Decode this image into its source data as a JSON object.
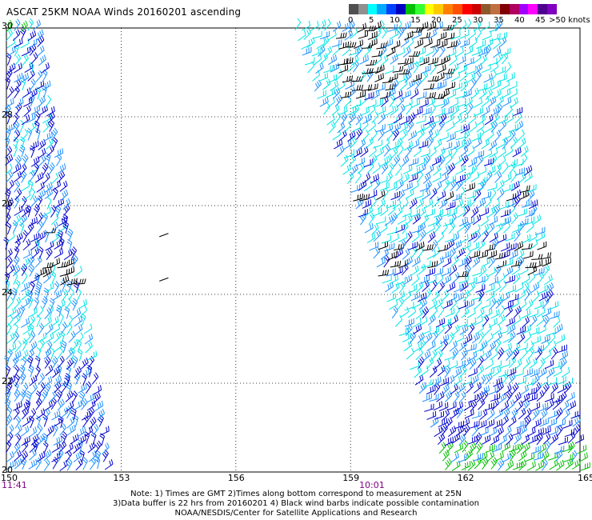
{
  "title": "ASCAT 25KM NOAA Winds 20160201 ascending",
  "legend": {
    "unit_label": ">50 knots",
    "ticks": [
      "0",
      "5",
      "10",
      "15",
      "20",
      "25",
      "30",
      "35",
      "40",
      "45"
    ],
    "colors": [
      "#505050",
      "#909090",
      "#00ffff",
      "#00aaff",
      "#0040ff",
      "#0000c0",
      "#00c000",
      "#33ff33",
      "#ffff00",
      "#ffcc00",
      "#ff8000",
      "#ff5000",
      "#ff0000",
      "#cc0000",
      "#8b5a2b",
      "#c07040",
      "#800000",
      "#b00060",
      "#a000ff",
      "#ff00ff",
      "#500090",
      "#8000c0"
    ]
  },
  "map": {
    "lon_ticks": [
      "150",
      "153",
      "156",
      "159",
      "162",
      "165"
    ],
    "lat_ticks": [
      "30",
      "28",
      "26",
      "24",
      "22",
      "20"
    ],
    "lon_range": [
      150,
      165
    ],
    "lat_range": [
      20,
      30
    ],
    "grid": "dotted",
    "swaths": [
      {
        "time_label": "11:41",
        "lon_at_lat20": [
          150.0,
          152.6
        ],
        "lon_at_lat30": [
          150.0,
          150.7
        ]
      },
      {
        "time_label": "10:01",
        "lon_at_lat20": [
          161.5,
          165.0
        ],
        "lon_at_lat30": [
          157.5,
          162.8
        ]
      }
    ],
    "isolated_barbs": [
      {
        "lon": 154.0,
        "lat": 25.3
      },
      {
        "lon": 154.0,
        "lat": 24.3
      }
    ],
    "barb_colors": {
      "contaminated": "#000000",
      "light": "#00e5e5",
      "medium": "#1e90ff",
      "strong": "#0000cd",
      "strongest": "#00c000"
    }
  },
  "notes": [
    "Note: 1) Times are GMT 2)Times along bottom correspond to measurement at 25N",
    "3)Data buffer is 22 hrs from 20160201 4) Black wind barbs indicate possible contamination",
    "NOAA/NESDIS/Center for Satellite Applications and Research"
  ]
}
